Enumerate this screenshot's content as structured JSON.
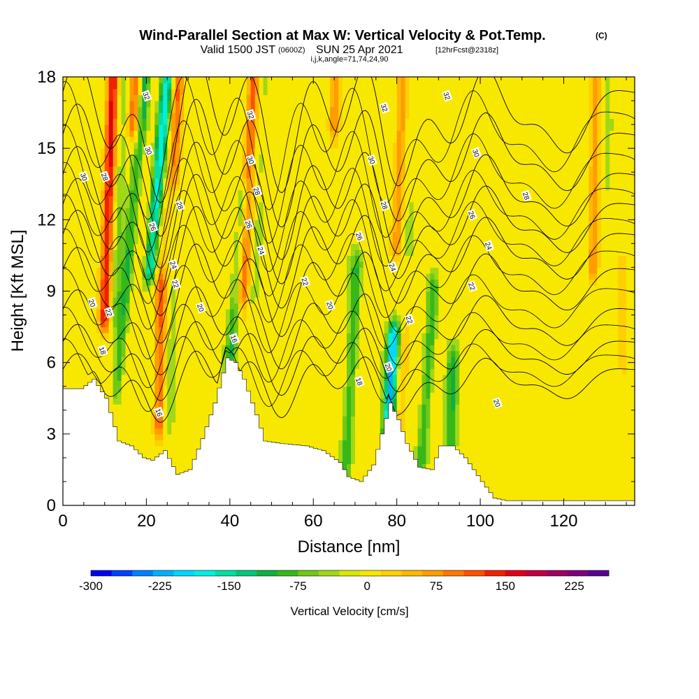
{
  "chart_data": {
    "type": "heatmap",
    "title": "Wind-Parallel Section at Max W: Vertical Velocity & Pot.Temp.",
    "title_mark": "(C)",
    "subtitle_main": "Valid 1500 JST",
    "subtitle_utc": "(0600Z)",
    "subtitle_date": "SUN 25 Apr 2021",
    "subtitle_fcst": "[12hrFcst@2318z]",
    "subtitle2": "i,j,k,angle=71,74,24,90",
    "xlabel": "Distance [nm]",
    "ylabel": "Height [Kft MSL]",
    "xlim": [
      0,
      137
    ],
    "ylim": [
      0,
      18
    ],
    "x_ticks": [
      "0",
      "20",
      "40",
      "60",
      "80",
      "100",
      "120"
    ],
    "y_ticks": [
      "0",
      "3",
      "6",
      "9",
      "12",
      "15",
      "18"
    ],
    "colorbar": {
      "label": "Vertical Velocity [cm/s]",
      "range": [
        -300,
        262.5
      ],
      "tick_labels": [
        "-300",
        "-225",
        "-150",
        "-75",
        "0",
        "75",
        "150",
        "225"
      ],
      "colors": [
        "#0000f0",
        "#0040ff",
        "#0080ff",
        "#00b0ff",
        "#00d8ff",
        "#00f0e0",
        "#00e0a0",
        "#00c878",
        "#10b040",
        "#38b818",
        "#70c818",
        "#a0d818",
        "#d8e800",
        "#f8e800",
        "#ffd000",
        "#ffb800",
        "#ff9c00",
        "#ff7800",
        "#ff5000",
        "#f02000",
        "#e00018",
        "#c00040",
        "#9c0060",
        "#7c007c",
        "#5a0090"
      ]
    },
    "w_features": [
      {
        "kind": "up",
        "x": 10,
        "y0": 8,
        "y1": 18,
        "lean": 0.2,
        "strength": 4
      },
      {
        "kind": "up",
        "x": 17,
        "y0": 16,
        "y1": 18,
        "lean": 0.2,
        "strength": 3
      },
      {
        "kind": "up",
        "x": 27,
        "y0": 14,
        "y1": 18,
        "lean": 0.2,
        "strength": 2
      },
      {
        "kind": "up",
        "x": 23,
        "y0": 3.5,
        "y1": 9,
        "lean": 0.1,
        "strength": 3
      },
      {
        "kind": "up",
        "x": 43,
        "y0": 9,
        "y1": 18,
        "lean": 0.3,
        "strength": 3
      },
      {
        "kind": "up",
        "x": 65,
        "y0": 16,
        "y1": 18,
        "lean": 0.2,
        "strength": 2
      },
      {
        "kind": "up",
        "x": 80,
        "y0": 11,
        "y1": 18,
        "lean": 0.2,
        "strength": 2
      },
      {
        "kind": "up",
        "x": 127,
        "y0": 10,
        "y1": 18,
        "lean": 0.1,
        "strength": 2
      },
      {
        "kind": "up",
        "x": 134,
        "y0": 6,
        "y1": 10,
        "lean": 0.0,
        "strength": 1
      },
      {
        "kind": "down",
        "x": 13,
        "y0": 5,
        "y1": 18,
        "lean": 0.5,
        "strength": 2
      },
      {
        "kind": "down",
        "x": 21,
        "y0": 10,
        "y1": 18,
        "lean": 0.5,
        "strength": 4
      },
      {
        "kind": "down",
        "x": 40,
        "y0": 6,
        "y1": 13,
        "lean": 0.5,
        "strength": 2
      },
      {
        "kind": "down",
        "x": 78,
        "y0": 3,
        "y1": 7,
        "lean": 0.3,
        "strength": 5
      },
      {
        "kind": "down",
        "x": 86,
        "y0": 2,
        "y1": 9,
        "lean": 0.4,
        "strength": 2
      },
      {
        "kind": "down",
        "x": 93,
        "y0": 2,
        "y1": 6,
        "lean": 0.1,
        "strength": 2
      },
      {
        "kind": "down",
        "x": 68,
        "y0": 2,
        "y1": 10,
        "lean": 0.3,
        "strength": 2
      }
    ],
    "terrain": [
      [
        0,
        4.9
      ],
      [
        4,
        4.9
      ],
      [
        7,
        5.3
      ],
      [
        10,
        4.5
      ],
      [
        13,
        2.7
      ],
      [
        16,
        2.5
      ],
      [
        19,
        2.0
      ],
      [
        21,
        1.9
      ],
      [
        24,
        2.3
      ],
      [
        27,
        1.3
      ],
      [
        30,
        1.5
      ],
      [
        33,
        2.8
      ],
      [
        36,
        4.3
      ],
      [
        39,
        6.2
      ],
      [
        41,
        6.0
      ],
      [
        43,
        5.3
      ],
      [
        46,
        3.8
      ],
      [
        48,
        2.7
      ],
      [
        52,
        2.6
      ],
      [
        58,
        2.5
      ],
      [
        62,
        2.3
      ],
      [
        66,
        1.8
      ],
      [
        68,
        1.2
      ],
      [
        71,
        1.0
      ],
      [
        74,
        1.7
      ],
      [
        76,
        3.0
      ],
      [
        78,
        4.3
      ],
      [
        80,
        3.6
      ],
      [
        82,
        2.6
      ],
      [
        85,
        1.6
      ],
      [
        88,
        1.5
      ],
      [
        90,
        2.5
      ],
      [
        93,
        2.5
      ],
      [
        96,
        2.0
      ],
      [
        100,
        1.0
      ],
      [
        103,
        0.3
      ],
      [
        106,
        0.2
      ],
      [
        137,
        0.2
      ]
    ],
    "theta_contours": [
      {
        "label": "16",
        "base": 5.2
      },
      {
        "label": "18",
        "base": 6.3
      },
      {
        "label": "20",
        "base": 7.6
      },
      {
        "label": "22",
        "base": 9.2
      },
      {
        "label": "24",
        "base": 10.6
      },
      {
        "label": "26",
        "base": 11.8
      },
      {
        "label": "28",
        "base": 13.0
      },
      {
        "label": "30",
        "base": 14.6
      },
      {
        "label": "32",
        "base": 16.3
      }
    ],
    "contour_labels": [
      {
        "text": "30",
        "x": 5,
        "y": 13.8
      },
      {
        "text": "28",
        "x": 10,
        "y": 13.8
      },
      {
        "text": "32",
        "x": 20,
        "y": 17.2
      },
      {
        "text": "30",
        "x": 20.5,
        "y": 14.9
      },
      {
        "text": "28",
        "x": 28,
        "y": 12.6
      },
      {
        "text": "26",
        "x": 21.5,
        "y": 11.7
      },
      {
        "text": "24",
        "x": 26.5,
        "y": 10.1
      },
      {
        "text": "22",
        "x": 27,
        "y": 9.3
      },
      {
        "text": "20",
        "x": 33,
        "y": 8.3
      },
      {
        "text": "20",
        "x": 7,
        "y": 8.5
      },
      {
        "text": "22",
        "x": 11,
        "y": 8.1
      },
      {
        "text": "18",
        "x": 9.5,
        "y": 6.5
      },
      {
        "text": "16",
        "x": 23,
        "y": 3.9
      },
      {
        "text": "16",
        "x": 41,
        "y": 7.0
      },
      {
        "text": "32",
        "x": 45,
        "y": 16.4
      },
      {
        "text": "30",
        "x": 45,
        "y": 14.5
      },
      {
        "text": "28",
        "x": 46.5,
        "y": 13.2
      },
      {
        "text": "26",
        "x": 44.5,
        "y": 11.8
      },
      {
        "text": "24",
        "x": 47.5,
        "y": 10.7
      },
      {
        "text": "22",
        "x": 58,
        "y": 9.4
      },
      {
        "text": "20",
        "x": 64,
        "y": 8.4
      },
      {
        "text": "18",
        "x": 71,
        "y": 5.2
      },
      {
        "text": "32",
        "x": 77,
        "y": 16.7
      },
      {
        "text": "30",
        "x": 74,
        "y": 14.5
      },
      {
        "text": "28",
        "x": 77,
        "y": 12.6
      },
      {
        "text": "26",
        "x": 71,
        "y": 11.3
      },
      {
        "text": "24",
        "x": 79,
        "y": 10.0
      },
      {
        "text": "22",
        "x": 83,
        "y": 7.8
      },
      {
        "text": "20",
        "x": 78,
        "y": 5.8
      },
      {
        "text": "32",
        "x": 92,
        "y": 17.2
      },
      {
        "text": "30",
        "x": 99,
        "y": 14.8
      },
      {
        "text": "28",
        "x": 111,
        "y": 13.0
      },
      {
        "text": "26",
        "x": 98,
        "y": 12.2
      },
      {
        "text": "24",
        "x": 102,
        "y": 10.9
      },
      {
        "text": "22",
        "x": 98,
        "y": 9.2
      },
      {
        "text": "20",
        "x": 104,
        "y": 4.3
      }
    ]
  }
}
